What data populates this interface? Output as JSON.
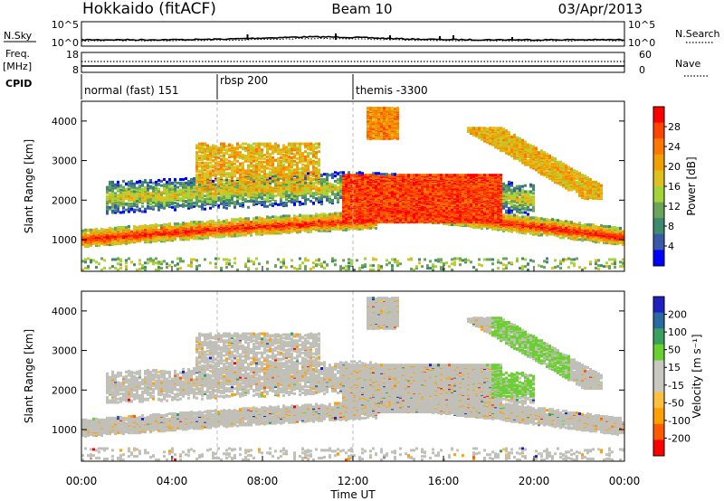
{
  "header": {
    "title_left": "Hokkaido (fitACF)",
    "title_center": "Beam 10",
    "title_right": "03/Apr/2013"
  },
  "colors": {
    "power_scale": [
      "#0000ff",
      "#3a5aa8",
      "#3d8a6e",
      "#6aa35a",
      "#a4d43a",
      "#e0c020",
      "#f0a000",
      "#ff7800",
      "#ff4400",
      "#ff0000"
    ],
    "velocity_scale": [
      "#ff0000",
      "#ff5a00",
      "#ffa000",
      "#ffc040",
      "#c8c8c0",
      "#c8c8c0",
      "#6ad030",
      "#3aa060",
      "#2a6aa0",
      "#2020c0"
    ],
    "ground_scatter": "#c0c0b8"
  },
  "chart_data": [
    {
      "type": "line",
      "panel": "noise",
      "left_label": "N.Sky",
      "right_label": "N.Search",
      "left_ticks": [
        "10^5",
        "10^0"
      ],
      "right_ticks": [
        "10^5",
        "10^0"
      ],
      "y_scale": "log",
      "ylim": [
        1,
        100000
      ]
    },
    {
      "type": "line",
      "panel": "frequency",
      "left_label": "Freq.",
      "left_unit": "[MHz]",
      "right_label": "Nave",
      "left_ticks": [
        "18",
        "8"
      ],
      "right_ticks": [
        "60",
        "0"
      ],
      "ylim_left": [
        8,
        18
      ],
      "ylim_right": [
        0,
        60
      ]
    },
    {
      "type": "table",
      "panel": "cpid",
      "label": "CPID",
      "segments": [
        {
          "start": "00:00",
          "end": "06:00",
          "name": "normal (fast) 151"
        },
        {
          "start": "06:00",
          "end": "12:00",
          "name": "rbsp 200"
        },
        {
          "start": "12:00",
          "end": "24:00",
          "name": "themis -3300"
        }
      ]
    },
    {
      "type": "heatmap",
      "panel": "power",
      "ylabel": "Slant Range [km]",
      "colorbar_label": "Power [dB]",
      "colorbar_ticks": [
        "28",
        "24",
        "20",
        "16",
        "12",
        "8",
        "4"
      ],
      "ylim": [
        200,
        4500
      ],
      "yticks": [
        "1000",
        "2000",
        "3000",
        "4000"
      ],
      "xlim": [
        "00:00",
        "24:00"
      ]
    },
    {
      "type": "heatmap",
      "panel": "velocity",
      "ylabel": "Slant Range [km]",
      "colorbar_label": "Velocity [m s⁻¹]",
      "colorbar_ticks": [
        "200",
        "100",
        "50",
        "15",
        "-15",
        "-50",
        "-100",
        "-200"
      ],
      "ylim": [
        200,
        4500
      ],
      "yticks": [
        "1000",
        "2000",
        "3000",
        "4000"
      ],
      "xticks": [
        "00:00",
        "04:00",
        "08:00",
        "12:00",
        "16:00",
        "20:00",
        "00:00"
      ],
      "xlabel": "Time UT"
    }
  ]
}
